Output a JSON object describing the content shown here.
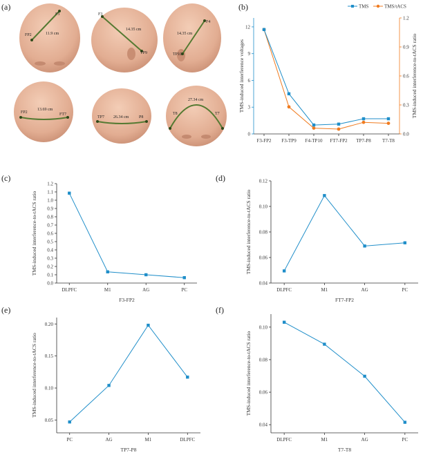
{
  "panel_labels": {
    "a": "(a)",
    "b": "(b)",
    "c": "(c)",
    "d": "(d)",
    "e": "(e)",
    "f": "(f)"
  },
  "colors": {
    "tms": "#1f8ec9",
    "tmstacs": "#f07b1f",
    "c_to_f": "#1f8ec9",
    "head": "#e7b79d",
    "measure": "#557a32"
  },
  "heads": [
    {
      "labels": [
        "F3",
        "FP2"
      ],
      "distance": "11.9 cm"
    },
    {
      "labels": [
        "F3",
        "TP9"
      ],
      "distance": "14.35 cm"
    },
    {
      "labels": [
        "F4",
        "TP10"
      ],
      "distance": "14.35 cm"
    },
    {
      "labels": [
        "FP2",
        "FT7"
      ],
      "distance": "13.69 cm"
    },
    {
      "labels": [
        "TP7",
        "P8"
      ],
      "distance": "26.34 cm"
    },
    {
      "labels": [
        "T8",
        "T7"
      ],
      "distance": "27.34 cm"
    }
  ],
  "chart_data": [
    {
      "panel": "b",
      "type": "line",
      "categories": [
        "F3-FP2",
        "F3-TP9",
        "F4-TP10",
        "FT7-FP2",
        "TP7-P8",
        "T7-T8"
      ],
      "series": [
        {
          "name": "TMS",
          "axis": "left",
          "values": [
            11.7,
            4.5,
            1.0,
            1.1,
            1.7,
            1.7
          ]
        },
        {
          "name": "TMS/tACS",
          "axis": "right",
          "values": [
            1.08,
            0.28,
            0.06,
            0.05,
            0.12,
            0.11
          ]
        }
      ],
      "ylabel_left": "TMS-induced interference voltages",
      "ylabel_right": "TMS-induced interference-to-tACS ratio",
      "ylim_left": [
        0,
        13
      ],
      "yticks_left": [
        "0",
        "3",
        "6",
        "9",
        "12"
      ],
      "ylim_right": [
        0,
        1.2
      ],
      "yticks_right": [
        "0.0",
        "0.3",
        "0.6",
        "0.9",
        "1.2"
      ]
    },
    {
      "panel": "c",
      "type": "line",
      "categories": [
        "DLPFC",
        "M1",
        "AG",
        "PC"
      ],
      "values": [
        1.085,
        0.135,
        0.1,
        0.065
      ],
      "xlabel": "F3-FP2",
      "ylabel": "TMS-induced interference-to-tACS ratio",
      "ylim": [
        0,
        1.2
      ],
      "yticks": [
        "0.0",
        "0.1",
        "0.2",
        "0.3",
        "0.4",
        "0.5",
        "0.6",
        "0.7",
        "0.8",
        "0.9",
        "1.0",
        "1.1",
        "1.2"
      ]
    },
    {
      "panel": "d",
      "type": "line",
      "categories": [
        "DLPFC",
        "M1",
        "AG",
        "PC"
      ],
      "values": [
        0.0495,
        0.1085,
        0.069,
        0.0715
      ],
      "xlabel": "FT7-FP2",
      "ylabel": "TMS-induced interference-to-tACS ratio",
      "ylim": [
        0.04,
        0.12
      ],
      "yticks": [
        "0.04",
        "0.06",
        "0.08",
        "0.10",
        "0.12"
      ]
    },
    {
      "panel": "e",
      "type": "line",
      "categories": [
        "PC",
        "AG",
        "M1",
        "DLPFC"
      ],
      "values": [
        0.047,
        0.104,
        0.198,
        0.117
      ],
      "xlabel": "TP7-P8",
      "ylabel": "TMS-induced interference-to-tACS ratio",
      "ylim": [
        0.03,
        0.21
      ],
      "yticks": [
        "0.05",
        "0.10",
        "0.15",
        "0.20"
      ]
    },
    {
      "panel": "f",
      "type": "line",
      "categories": [
        "DLPFC",
        "M1",
        "AG",
        "PC"
      ],
      "values": [
        0.103,
        0.0895,
        0.0698,
        0.0415
      ],
      "xlabel": "T7-T8",
      "ylabel": "TMS-induced interference-to-tACS ratio",
      "ylim": [
        0.035,
        0.108
      ],
      "yticks": [
        "0.04",
        "0.06",
        "0.08",
        "0.10"
      ]
    }
  ]
}
